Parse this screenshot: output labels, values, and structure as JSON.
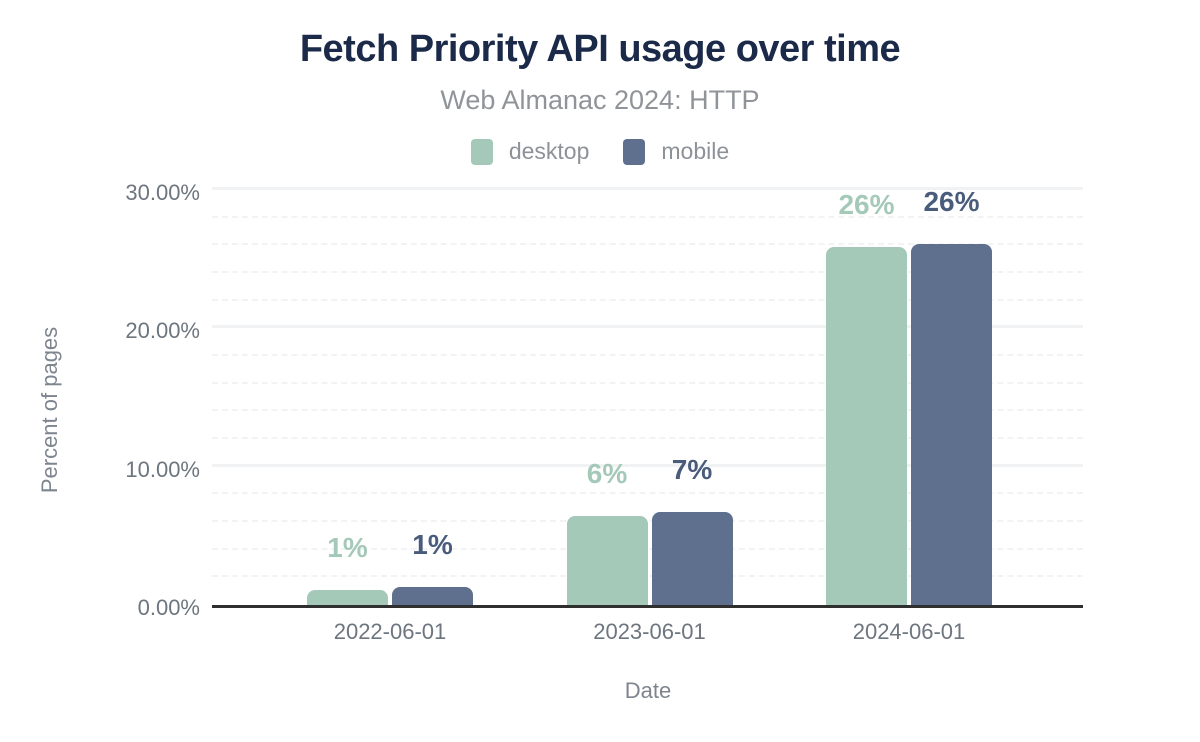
{
  "title": "Fetch Priority API usage over time",
  "subtitle": "Web Almanac 2024: HTTP",
  "legend": {
    "items": [
      {
        "name": "desktop",
        "label": "desktop"
      },
      {
        "name": "mobile",
        "label": "mobile"
      }
    ]
  },
  "axes": {
    "y_title": "Percent of pages",
    "x_title": "Date",
    "y_ticks": [
      {
        "value": 0,
        "label": "0.00%"
      },
      {
        "value": 10,
        "label": "10.00%"
      },
      {
        "value": 20,
        "label": "20.00%"
      },
      {
        "value": 30,
        "label": "30.00%"
      }
    ]
  },
  "colors": {
    "desktop": "#a5c9b9",
    "mobile": "#5e708d",
    "desktop_label": "#a5c9b9",
    "mobile_label": "#4a5c7c",
    "title": "#1b2a49",
    "subtitle": "#909499",
    "legend_text": "#8d9299",
    "tick_text": "#6d757f",
    "axis_title_text": "#7e858f",
    "axis_line": "#2f2f2f",
    "grid_major": "#f1f2f4",
    "grid_minor": "#f2f3f5"
  },
  "chart_data": {
    "type": "bar",
    "title": "Fetch Priority API usage over time",
    "subtitle": "Web Almanac 2024: HTTP",
    "categories": [
      "2022-06-01",
      "2023-06-01",
      "2024-06-01"
    ],
    "series": [
      {
        "name": "desktop",
        "values": [
          1.1,
          6.4,
          25.9
        ],
        "labels": [
          "1%",
          "6%",
          "26%"
        ]
      },
      {
        "name": "mobile",
        "values": [
          1.3,
          6.7,
          26.1
        ],
        "labels": [
          "1%",
          "7%",
          "26%"
        ]
      }
    ],
    "xlabel": "Date",
    "ylabel": "Percent of pages",
    "ylim": [
      0,
      30
    ],
    "y_major_step": 10,
    "y_minor_step": 2,
    "grid": "horizontal",
    "legend_position": "top"
  }
}
